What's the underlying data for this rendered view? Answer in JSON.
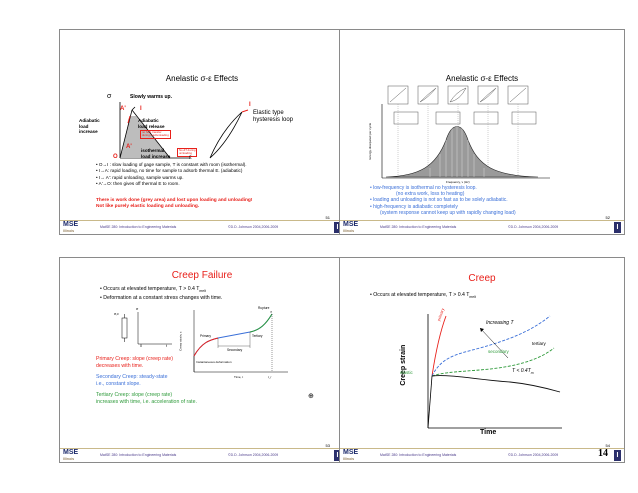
{
  "page_number": "14",
  "footer": {
    "logo": "MSE",
    "logo_sub": "Illinois",
    "course": "MatSE 280: Introduction to Engineering Materials",
    "copyright": "©D.D. Johnson 2004,2006-2009"
  },
  "slide1": {
    "title": "Anelastic σ-ε Effects",
    "page": "51",
    "sigma": "σ",
    "eps": "ε",
    "slow_warm": "Slowly warms up.",
    "point_a_prime": "A'",
    "point_i": "I",
    "point_o": "O",
    "point_f": "f",
    "point_i2": "I",
    "adiabatic_load": [
      "Adiabatic",
      "load",
      "increase"
    ],
    "adiabatic_release": [
      "Adiabatic",
      "load release"
    ],
    "no_heat": [
      "no heat transfer",
      "during load/unloading"
    ],
    "isothermal": [
      "isothermal",
      "load increase"
    ],
    "no_dt": [
      "No ΔT during",
      "un/loading"
    ],
    "elastic_type": [
      "Elastic type",
      "hysteresis loop"
    ],
    "bullets": [
      "• O→I : slow loading of gage sample, T is constant with room (isothermal).",
      "• I→A: rapid loading, no time for sample to adsorb thermal E. (adiabatic)",
      "• I→ A': rapid unloading, sample warms up.",
      "• A'→O: then gives off thermal E to room."
    ],
    "red_line_1": "There is work done (grey area) and lost upon loading and unloading!",
    "red_line_2": "Not like purely elastic loading and unloading."
  },
  "slide2": {
    "title": "Anelastic σ-ε Effects",
    "page": "52",
    "bullets": [
      "• low-frequency is isothermal no hysteresis loop.",
      "(no extra work, loss to heating)",
      "• loading and unloading is not so fast as to be solely adiabatic.",
      "• high-frequency is adiabatic completely",
      "(system response cannot keep up with rapidly changing load)"
    ],
    "y_axis": "Energy dissipated per cycle",
    "x_axis": "Frequency, ν (Hz)"
  },
  "slide3": {
    "title": "Creep Failure",
    "page": "53",
    "bullets": [
      "• Occurs at elevated temperature, T > 0.4 T",
      "• Deformation at a constant stress changes with time."
    ],
    "tmelt_sub": "melt",
    "sigma_eps": "σ,ε",
    "sigma": "σ",
    "zero": "0",
    "t": "t",
    "rupture": "Rupture",
    "primary": "Primary",
    "tertiary": "Tertiary",
    "secondary": "Secondary",
    "instant": "Instantaneous deformation",
    "creep_strain_axis": "Creep strain, ε",
    "time_axis": "Time, t",
    "tr": "t_r",
    "primary_text": [
      "Primary Creep: slope (creep rate)",
      "decreases with time."
    ],
    "secondary_text": [
      "Secondary Creep: steady-state",
      "i.e., constant slope."
    ],
    "tertiary_text": [
      "Tertiary Creep: slope (creep rate)",
      "increases with time, i.e. acceleration of rate."
    ]
  },
  "slide4": {
    "title": "Creep",
    "page": "54",
    "bullet": "• Occurs at elevated temperature, T > 0.4 T",
    "tmelt_sub": "melt",
    "increasing": "Increasing T",
    "primary": "primary",
    "tertiary": "tertiary",
    "secondary": "secondary",
    "elastic": "elastic",
    "tlt": "T < 0.4T",
    "tlt_sub": "m",
    "y_axis": "Creep strain",
    "x_axis": "Time"
  }
}
